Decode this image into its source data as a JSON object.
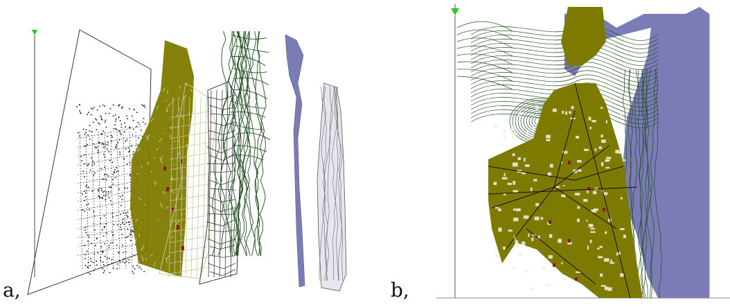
{
  "panels": [
    {
      "label": "a,"
    },
    {
      "label": "b,"
    }
  ],
  "colors": {
    "buildings": "#7d7a00",
    "buildings_dark": "#5e5b00",
    "red_features": "#8b1a1a",
    "water": "#7b7bb5",
    "contours": "#1f4d1f",
    "roads": "#101010",
    "beige_grid": "#c8c89a",
    "grey_layer": "#b8b8c8",
    "axis_marker": "#22cc22"
  },
  "icons": {
    "axis": "green-down-arrow-icon"
  }
}
